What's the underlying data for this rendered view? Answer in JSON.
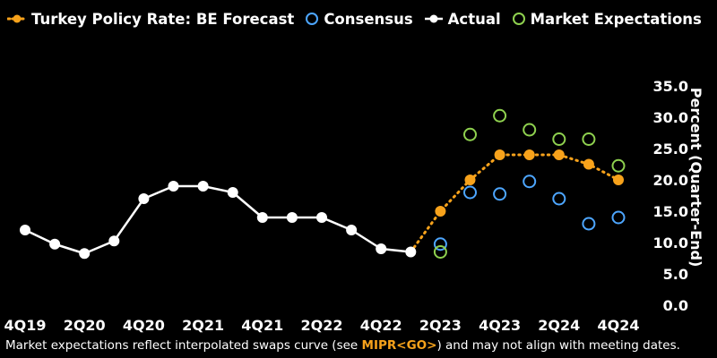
{
  "legend": {
    "be_forecast": "Turkey Policy Rate: BE Forecast",
    "consensus": "Consensus",
    "actual": "Actual",
    "market": "Market Expectations"
  },
  "footnote": {
    "prefix": "Market expectations reflect interpolated swaps curve (see ",
    "code": "MIPR<GO>",
    "suffix": ") and may not align with meeting dates."
  },
  "colors": {
    "background": "#000000",
    "actual": "#ffffff",
    "be_forecast": "#f7a21b",
    "consensus": "#4da6ff",
    "market": "#8fd14f"
  },
  "chart_data": {
    "type": "line",
    "ylabel": "Percent (Quarter-End)",
    "ylim": [
      0,
      35
    ],
    "yticks": [
      "35.0",
      "30.0",
      "25.0",
      "20.0",
      "15.0",
      "10.0",
      "5.0",
      "0.0"
    ],
    "xticks": [
      "4Q19",
      "2Q20",
      "4Q20",
      "2Q21",
      "4Q21",
      "2Q22",
      "4Q22",
      "2Q23",
      "4Q23",
      "2Q24",
      "4Q24"
    ],
    "x": [
      "4Q19",
      "1Q20",
      "2Q20",
      "3Q20",
      "4Q20",
      "1Q21",
      "2Q21",
      "3Q21",
      "4Q21",
      "1Q22",
      "2Q22",
      "3Q22",
      "4Q22",
      "1Q23",
      "2Q23",
      "3Q23",
      "4Q23",
      "1Q24",
      "2Q24",
      "3Q24",
      "4Q24"
    ],
    "grid": false,
    "legend_position": "top",
    "series": [
      {
        "name": "Actual",
        "style": "solid-line-filled-markers",
        "values": [
          12.0,
          9.75,
          8.25,
          10.25,
          17.0,
          19.0,
          19.0,
          18.0,
          14.0,
          14.0,
          14.0,
          12.0,
          9.0,
          8.5,
          null,
          null,
          null,
          null,
          null,
          null,
          null
        ]
      },
      {
        "name": "Turkey Policy Rate: BE Forecast",
        "style": "dotted-line-filled-markers",
        "values": [
          null,
          null,
          null,
          null,
          null,
          null,
          null,
          null,
          null,
          null,
          null,
          null,
          null,
          8.5,
          15.0,
          20.0,
          24.0,
          24.0,
          24.0,
          22.5,
          20.0
        ]
      },
      {
        "name": "Consensus",
        "style": "hollow-markers",
        "values": [
          null,
          null,
          null,
          null,
          null,
          null,
          null,
          null,
          null,
          null,
          null,
          null,
          null,
          null,
          9.75,
          18.0,
          17.75,
          19.75,
          17.0,
          13.0,
          14.0
        ]
      },
      {
        "name": "Market Expectations",
        "style": "hollow-markers",
        "values": [
          null,
          null,
          null,
          null,
          null,
          null,
          null,
          null,
          null,
          null,
          null,
          null,
          null,
          null,
          8.5,
          27.25,
          30.25,
          28.0,
          26.5,
          26.5,
          22.25
        ]
      }
    ]
  }
}
